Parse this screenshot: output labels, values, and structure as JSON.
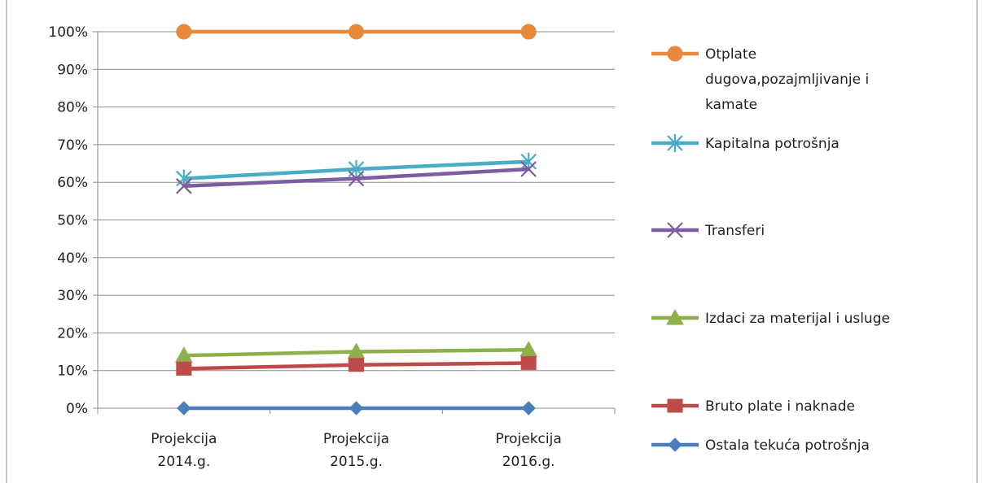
{
  "chart_data": {
    "type": "line",
    "categories": [
      [
        "Projekcija",
        "2014.g."
      ],
      [
        "Projekcija",
        "2015.g."
      ],
      [
        "Projekcija",
        "2016.g."
      ]
    ],
    "ylim": [
      0,
      100
    ],
    "y_ticks": [
      0,
      10,
      20,
      30,
      40,
      50,
      60,
      70,
      80,
      90,
      100
    ],
    "y_tick_labels": [
      "0%",
      "10%",
      "20%",
      "30%",
      "40%",
      "50%",
      "60%",
      "70%",
      "80%",
      "90%",
      "100%"
    ],
    "grid": true,
    "legend_position": "right",
    "series": [
      {
        "name": [
          "Otplate",
          "dugova,pozajmljivanje i",
          "kamate"
        ],
        "values": [
          100,
          100,
          100
        ],
        "color": "#E8883A",
        "marker": "circle"
      },
      {
        "name": [
          "Kapitalna potrošnja"
        ],
        "values": [
          61,
          63.5,
          65.5
        ],
        "color": "#4BACC6",
        "marker": "asterisk"
      },
      {
        "name": [
          "Transferi"
        ],
        "values": [
          59,
          61,
          63.5
        ],
        "color": "#7E5CA1",
        "marker": "x"
      },
      {
        "name": [
          "Izdaci za materijal i usluge"
        ],
        "values": [
          14,
          15,
          15.5
        ],
        "color": "#8DB04B",
        "marker": "triangle"
      },
      {
        "name": [
          "Bruto plate i naknade"
        ],
        "values": [
          10.5,
          11.5,
          12
        ],
        "color": "#BE4B48",
        "marker": "square"
      },
      {
        "name": [
          "Ostala tekuća potrošnja"
        ],
        "values": [
          0,
          0,
          0
        ],
        "color": "#4A7EBB",
        "marker": "diamond"
      }
    ]
  }
}
